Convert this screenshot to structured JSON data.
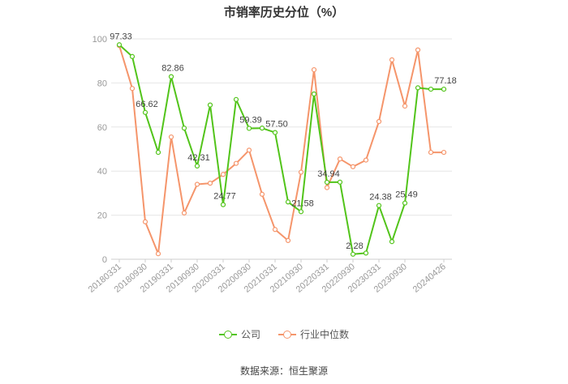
{
  "title": "市销率历史分位（%）",
  "source": "数据来源：恒生聚源",
  "legend": {
    "company_label": "公司",
    "industry_label": "行业中位数"
  },
  "colors": {
    "company": "#52c41a",
    "industry": "#f5956b",
    "grid": "#e6e6e6",
    "axis_text": "#999999",
    "label_text": "#444444"
  },
  "chart_data": {
    "type": "line",
    "title": "市销率历史分位（%）",
    "ylim": [
      0,
      100
    ],
    "yticks": [
      0,
      20,
      40,
      60,
      80,
      100
    ],
    "grid": true,
    "legend_position": "bottom",
    "tick_labels": [
      "20180331",
      "20180930",
      "20190331",
      "20190930",
      "20200331",
      "20200930",
      "20210331",
      "20210930",
      "20220331",
      "20220930",
      "20230331",
      "20230930",
      "20240426"
    ],
    "x": [
      "20180331",
      "20180630",
      "20180930",
      "20181231",
      "20190331",
      "20190630",
      "20190930",
      "20191231",
      "20200331",
      "20200630",
      "20200930",
      "20201231",
      "20210331",
      "20210630",
      "20210930",
      "20211231",
      "20220331",
      "20220630",
      "20220930",
      "20221231",
      "20230331",
      "20230630",
      "20230930",
      "20231231",
      "20240331",
      "20240426"
    ],
    "series": [
      {
        "name": "公司",
        "values": [
          97.33,
          92.0,
          66.62,
          48.5,
          82.86,
          59.5,
          42.31,
          70.0,
          24.77,
          72.5,
          59.39,
          59.5,
          57.5,
          26.0,
          21.58,
          75.0,
          34.94,
          35.0,
          2.28,
          2.8,
          24.38,
          8.0,
          25.49,
          77.8,
          77.18,
          77.18
        ],
        "labels": {
          "0": "97.33",
          "2": "66.62",
          "4": "82.86",
          "6": "42.31",
          "8": "24.77",
          "10": "59.39",
          "12": "57.50",
          "14": "21.58",
          "16": "34.94",
          "18": "2.28",
          "20": "24.38",
          "22": "25.49",
          "25": "77.18"
        }
      },
      {
        "name": "行业中位数",
        "values": [
          97.0,
          77.5,
          17.0,
          2.5,
          55.5,
          21.0,
          34.0,
          34.5,
          38.5,
          43.5,
          49.5,
          29.5,
          13.5,
          8.5,
          39.5,
          86.0,
          32.5,
          45.5,
          42.0,
          45.0,
          62.5,
          90.5,
          69.5,
          95.0,
          48.5,
          48.5
        ]
      }
    ]
  }
}
